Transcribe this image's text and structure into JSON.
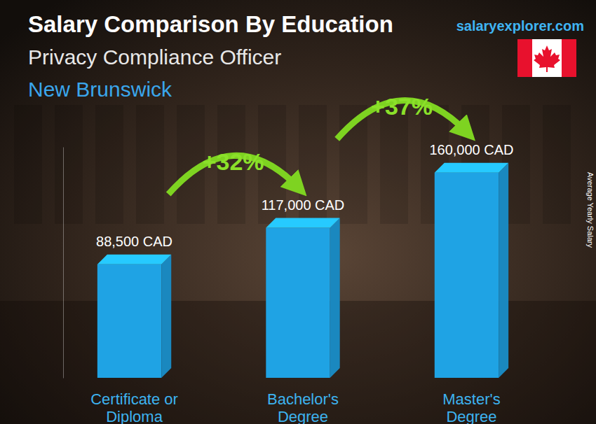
{
  "chart_data": {
    "type": "bar",
    "title": "Salary Comparison By Education",
    "subtitle": "Privacy Compliance Officer",
    "location": "New Brunswick",
    "source": "salaryexplorer.com",
    "y_label": "Average Yearly Salary",
    "categories": [
      "Certificate or Diploma",
      "Bachelor's Degree",
      "Master's Degree"
    ],
    "values": [
      88500,
      117000,
      160000
    ],
    "value_labels": [
      "88,500 CAD",
      "117,000 CAD",
      "160,000 CAD"
    ],
    "data_labels": true,
    "color": "#1fa3e4",
    "ylim": [
      0,
      180000
    ],
    "tick_labels": "x",
    "annotations": [
      {
        "text": "+32%"
      },
      {
        "text": "+37%"
      }
    ]
  }
}
